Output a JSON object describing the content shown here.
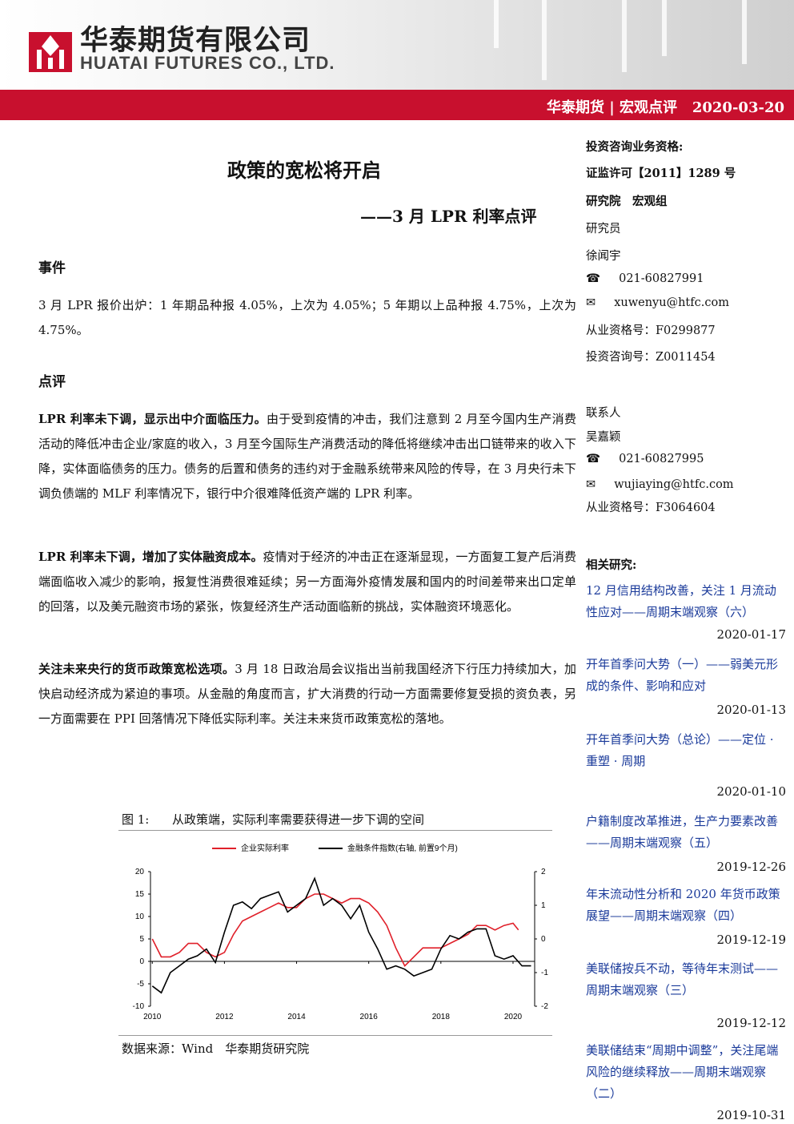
{
  "header": {
    "company_cn": "华泰期货有限公司",
    "company_en": "HUATAI FUTURES CO., LTD.",
    "brand": "华泰期货",
    "column": "宏观点评",
    "date": "2020-03-20"
  },
  "article": {
    "title": "政策的宽松将开启",
    "subtitle": "——3 月 LPR 利率点评",
    "event": {
      "heading": "事件",
      "text": "3 月 LPR 报价出炉：1 年期品种报 4.05%，上次为 4.05%；5 年期以上品种报 4.75%，上次为 4.75%。"
    },
    "review": {
      "heading": "点评",
      "paragraphs": [
        {
          "lead": "LPR 利率未下调，显示出中介面临压力。",
          "text": "由于受到疫情的冲击，我们注意到 2 月至今国内生产消费活动的降低冲击企业/家庭的收入，3 月至今国际生产消费活动的降低将继续冲击出口链带来的收入下降，实体面临债务的压力。债务的后置和债务的违约对于金融系统带来风险的传导，在 3 月央行未下调负债端的 MLF 利率情况下，银行中介很难降低资产端的 LPR 利率。"
        },
        {
          "lead": "LPR 利率未下调，增加了实体融资成本。",
          "text": "疫情对于经济的冲击正在逐渐显现，一方面复工复产后消费端面临收入减少的影响，报复性消费很难延续；另一方面海外疫情发展和国内的时间差带来出口定单的回落，以及美元融资市场的紧张，恢复经济生产活动面临新的挑战，实体融资环境恶化。"
        },
        {
          "lead": "关注未来央行的货币政策宽松选项。",
          "text": "3 月 18 日政治局会议指出当前我国经济下行压力持续加大，加快启动经济成为紧迫的事项。从金融的角度而言，扩大消费的行动一方面需要修复受损的资负表，另一方面需要在 PPI 回落情况下降低实际利率。关注未来货币政策宽松的落地。"
        }
      ]
    }
  },
  "figure": {
    "label": "图 1:",
    "caption": "从政策端，实际利率需要获得进一步下调的空间",
    "source": "数据来源：Wind　华泰期货研究院",
    "chart_data": {
      "type": "line",
      "xlim": [
        2009.95,
        2020.6
      ],
      "xticks": [
        2010,
        2012,
        2014,
        2016,
        2018,
        2020
      ],
      "ylim": [
        -10,
        20
      ],
      "yticks": [
        -10,
        -5,
        0,
        5,
        10,
        15,
        20
      ],
      "y2lim": [
        -2,
        2
      ],
      "y2ticks": [
        -2,
        -1,
        0,
        1,
        2
      ],
      "grid": false,
      "legend": "top",
      "series": [
        {
          "name": "企业实际利率",
          "color": "#e0202a",
          "x": [
            2010.0,
            2010.25,
            2010.5,
            2010.75,
            2011.0,
            2011.25,
            2011.5,
            2011.75,
            2012.0,
            2012.25,
            2012.5,
            2012.75,
            2013.0,
            2013.25,
            2013.5,
            2013.75,
            2014.0,
            2014.25,
            2014.5,
            2014.75,
            2015.0,
            2015.25,
            2015.5,
            2015.75,
            2016.0,
            2016.25,
            2016.5,
            2016.75,
            2017.0,
            2017.25,
            2017.5,
            2017.75,
            2018.0,
            2018.25,
            2018.5,
            2018.75,
            2019.0,
            2019.25,
            2019.5,
            2019.75,
            2020.0,
            2020.15
          ],
          "values": [
            5,
            1,
            1,
            2,
            4,
            4,
            2,
            1,
            2,
            6,
            9,
            10,
            11,
            12,
            13,
            12,
            12,
            14,
            15,
            15,
            14,
            13,
            14,
            14,
            13,
            11,
            8,
            3,
            -1,
            1,
            3,
            3,
            3,
            4,
            5,
            6,
            8,
            8,
            7,
            8,
            8.5,
            7
          ]
        },
        {
          "name": "金融条件指数(右轴, 前置9个月)",
          "color": "#000000",
          "axis": "y2",
          "x": [
            2010.0,
            2010.25,
            2010.5,
            2010.75,
            2011.0,
            2011.25,
            2011.5,
            2011.75,
            2012.0,
            2012.25,
            2012.5,
            2012.75,
            2013.0,
            2013.25,
            2013.5,
            2013.75,
            2014.0,
            2014.25,
            2014.5,
            2014.75,
            2015.0,
            2015.25,
            2015.5,
            2015.75,
            2016.0,
            2016.25,
            2016.5,
            2016.75,
            2017.0,
            2017.25,
            2017.5,
            2017.75,
            2018.0,
            2018.25,
            2018.5,
            2018.75,
            2019.0,
            2019.25,
            2019.5,
            2019.75,
            2020.0,
            2020.25,
            2020.5
          ],
          "values": [
            -1.4,
            -1.6,
            -1.0,
            -0.8,
            -0.6,
            -0.5,
            -0.3,
            -0.7,
            0.2,
            1.0,
            1.1,
            0.9,
            1.2,
            1.3,
            1.4,
            0.8,
            1.0,
            1.2,
            1.8,
            1.0,
            1.2,
            1.0,
            0.6,
            1.0,
            0.2,
            -0.3,
            -0.9,
            -0.8,
            -0.9,
            -1.1,
            -1.0,
            -0.9,
            -0.3,
            0.1,
            0.0,
            0.2,
            0.3,
            0.3,
            -0.5,
            -0.6,
            -0.5,
            -0.8,
            -0.8
          ]
        }
      ]
    }
  },
  "sidebar": {
    "qualification_label": "投资咨询业务资格:",
    "license": "证监许可【2011】1289 号",
    "department": "研究院　宏观组",
    "researcher": {
      "role": "研究员",
      "name": "徐闻宇",
      "phone": "021-60827991",
      "email": "xuwenyu@htfc.com",
      "cert": "从业资格号：F0299877",
      "consult": "投资咨询号：Z0011454"
    },
    "contact": {
      "role": "联系人",
      "name": "吴嘉颖",
      "phone": "021-60827995",
      "email": "wujiaying@htfc.com",
      "cert": "从业资格号：F3064604"
    },
    "related_heading": "相关研究:",
    "related": [
      {
        "title": "12 月信用结构改善，关注 1 月流动性应对——周期末端观察（六）",
        "date": "2020-01-17"
      },
      {
        "title": "开年首季问大势（一）——弱美元形成的条件、影响和应对",
        "date": "2020-01-13"
      },
      {
        "title": "开年首季问大势（总论）——定位 · 重塑 · 周期",
        "date": "2020-01-10"
      },
      {
        "title": "户籍制度改革推进，生产力要素改善——周期末端观察（五）",
        "date": "2019-12-26"
      },
      {
        "title": "年末流动性分析和 2020 年货币政策展望——周期末端观察（四）",
        "date": "2019-12-19"
      },
      {
        "title": "美联储按兵不动，等待年末测试——周期末端观察（三）",
        "date": "2019-12-12"
      },
      {
        "title": "美联储结束“周期中调整”，关注尾端风险的继续释放——周期末端观察（二）",
        "date": "2019-10-31"
      }
    ]
  }
}
